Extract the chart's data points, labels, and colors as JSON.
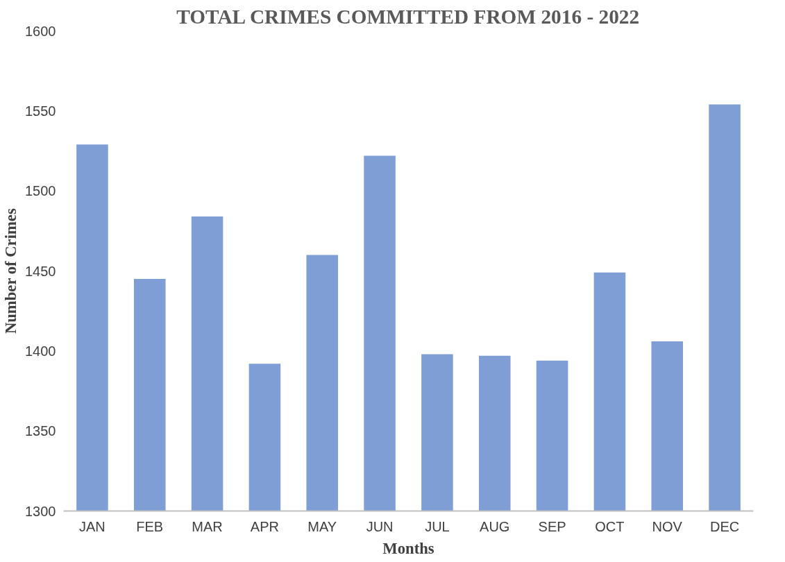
{
  "chart_data": {
    "type": "bar",
    "title": "TOTAL CRIMES COMMITTED FROM 2016 - 2022",
    "xlabel": "Months",
    "ylabel": "Number of Crimes",
    "categories": [
      "JAN",
      "FEB",
      "MAR",
      "APR",
      "MAY",
      "JUN",
      "JUL",
      "AUG",
      "SEP",
      "OCT",
      "NOV",
      "DEC"
    ],
    "values": [
      1529,
      1445,
      1484,
      1392,
      1460,
      1522,
      1398,
      1397,
      1394,
      1449,
      1406,
      1554
    ],
    "color": "#7f9ed6",
    "ylim": [
      1300,
      1600
    ],
    "yticks": [
      1300,
      1350,
      1400,
      1450,
      1500,
      1550,
      1600
    ],
    "grid": false
  }
}
